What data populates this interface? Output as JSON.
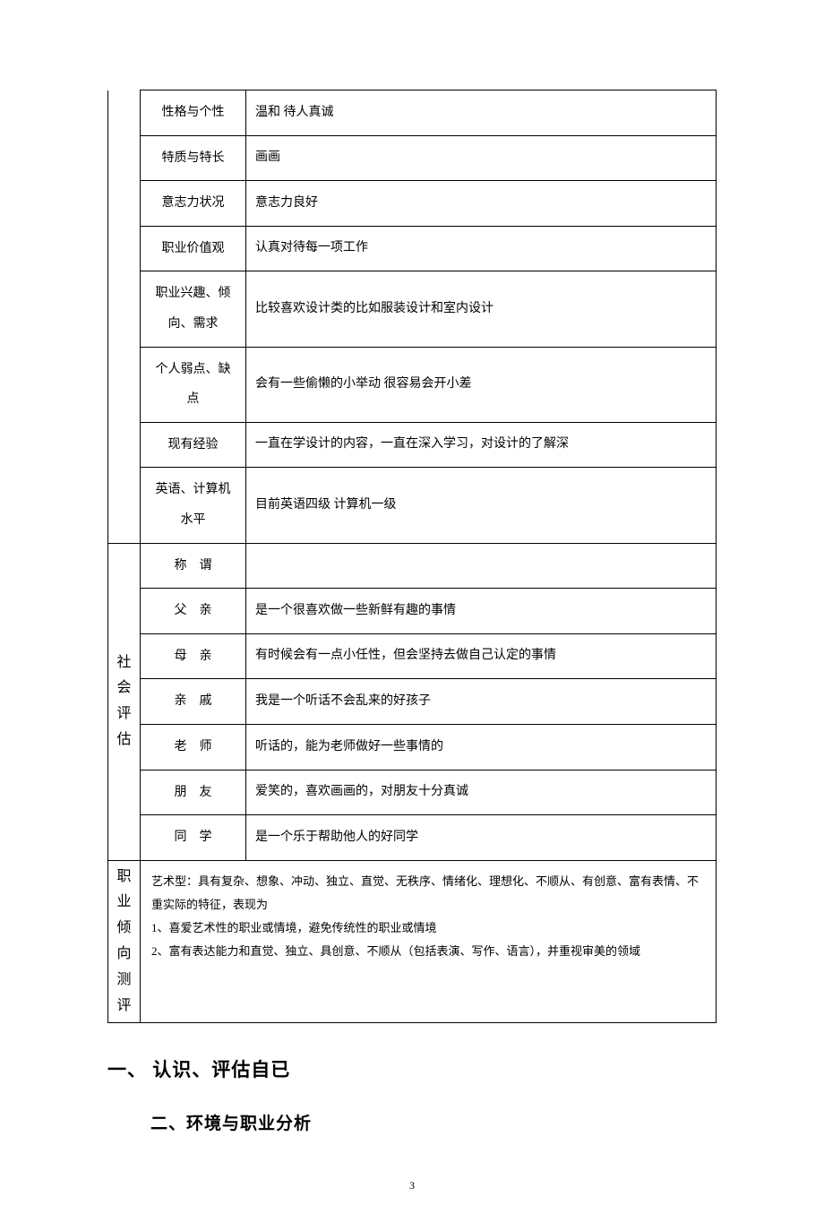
{
  "colors": {
    "text": "#000000",
    "background": "#ffffff",
    "border": "#000000"
  },
  "typography": {
    "body_font": "SimSun",
    "body_size_pt": 14,
    "heading1_size_pt": 21,
    "heading2_size_pt": 19,
    "assessment_size_pt": 13,
    "page_number_size_pt": 12
  },
  "section1": {
    "rows": [
      {
        "label": "性格与个性",
        "value": "温和 待人真诚"
      },
      {
        "label": "特质与特长",
        "value": "画画"
      },
      {
        "label": "意志力状况",
        "value": "意志力良好"
      },
      {
        "label": "职业价值观",
        "value": "认真对待每一项工作"
      },
      {
        "label": "职业兴趣、倾向、需求",
        "value": "比较喜欢设计类的比如服装设计和室内设计"
      },
      {
        "label": "个人弱点、缺点",
        "value": "会有一些偷懒的小举动 很容易会开小差"
      },
      {
        "label": "现有经验",
        "value": "一直在学设计的内容，一直在深入学习，对设计的了解深"
      },
      {
        "label": "英语、计算机水平",
        "value": "目前英语四级 计算机一级"
      }
    ]
  },
  "section2": {
    "category": "社会评估",
    "rows": [
      {
        "label": "称　谓",
        "value": ""
      },
      {
        "label": "父　亲",
        "value": "是一个很喜欢做一些新鲜有趣的事情"
      },
      {
        "label": "母　亲",
        "value": "有时候会有一点小任性，但会坚持去做自己认定的事情"
      },
      {
        "label": "亲　戚",
        "value": "我是一个听话不会乱来的好孩子"
      },
      {
        "label": "老　师",
        "value": "听话的，能为老师做好一些事情的"
      },
      {
        "label": "朋　友",
        "value": "爱笑的，喜欢画画的，对朋友十分真诚"
      },
      {
        "label": "同　学",
        "value": "是一个乐于帮助他人的好同学"
      }
    ]
  },
  "section3": {
    "category": "职业倾向测评",
    "content": {
      "intro": "艺术型：具有复杂、想象、冲动、独立、直觉、无秩序、情绪化、理想化、不顺从、有创意、富有表情、不重实际的特征，表现为",
      "point1": "1、喜爱艺术性的职业或情境，避免传统性的职业或情境",
      "point2": "2、富有表达能力和直觉、独立、具创意、不顺从（包括表演、写作、语言），并重视审美的领域"
    }
  },
  "headings": {
    "h1": "一、 认识、评估自已",
    "h2": "二、环境与职业分析"
  },
  "page_number": "3"
}
